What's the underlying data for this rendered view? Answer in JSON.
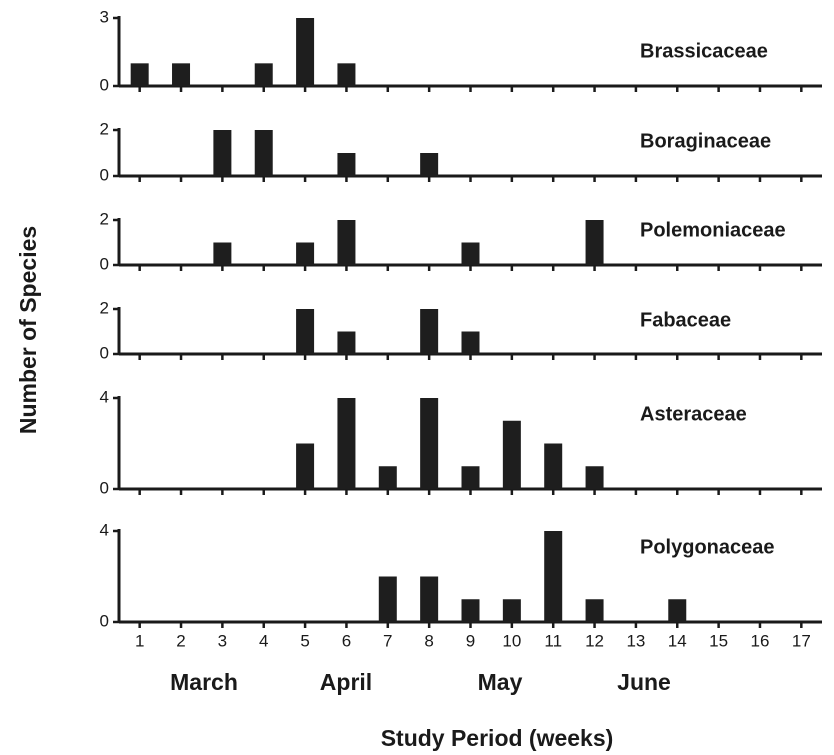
{
  "chart_data": [
    {
      "type": "bar",
      "title": "Brassicaceae",
      "x": [
        1,
        2,
        4,
        5,
        6
      ],
      "values": [
        1,
        1,
        1,
        3,
        1
      ],
      "color": "#1e1e1e",
      "xlim": [
        0.5,
        17.5
      ],
      "xticks": [
        1,
        2,
        3,
        4,
        5,
        6,
        7,
        8,
        9,
        10,
        11,
        12,
        13,
        14,
        15,
        16,
        17
      ],
      "ylim": [
        0,
        3
      ],
      "yticks": [
        0,
        3
      ]
    },
    {
      "type": "bar",
      "title": "Boraginaceae",
      "x": [
        3,
        4,
        6,
        8
      ],
      "values": [
        2,
        2,
        1,
        1
      ],
      "color": "#1e1e1e",
      "xlim": [
        0.5,
        17.5
      ],
      "xticks": [
        1,
        2,
        3,
        4,
        5,
        6,
        7,
        8,
        9,
        10,
        11,
        12,
        13,
        14,
        15,
        16,
        17
      ],
      "ylim": [
        0,
        2
      ],
      "yticks": [
        0,
        2
      ]
    },
    {
      "type": "bar",
      "title": "Polemoniaceae",
      "x": [
        3,
        5,
        6,
        9,
        12
      ],
      "values": [
        1,
        1,
        2,
        1,
        2
      ],
      "color": "#1e1e1e",
      "xlim": [
        0.5,
        17.5
      ],
      "xticks": [
        1,
        2,
        3,
        4,
        5,
        6,
        7,
        8,
        9,
        10,
        11,
        12,
        13,
        14,
        15,
        16,
        17
      ],
      "ylim": [
        0,
        2
      ],
      "yticks": [
        0,
        2
      ]
    },
    {
      "type": "bar",
      "title": "Fabaceae",
      "x": [
        5,
        6,
        8,
        9
      ],
      "values": [
        2,
        1,
        2,
        1
      ],
      "color": "#1e1e1e",
      "xlim": [
        0.5,
        17.5
      ],
      "xticks": [
        1,
        2,
        3,
        4,
        5,
        6,
        7,
        8,
        9,
        10,
        11,
        12,
        13,
        14,
        15,
        16,
        17
      ],
      "ylim": [
        0,
        2
      ],
      "yticks": [
        0,
        2
      ]
    },
    {
      "type": "bar",
      "title": "Asteraceae",
      "x": [
        5,
        6,
        7,
        8,
        9,
        10,
        11,
        12
      ],
      "values": [
        2,
        4,
        1,
        4,
        1,
        3,
        2,
        1
      ],
      "color": "#1e1e1e",
      "xlim": [
        0.5,
        17.5
      ],
      "xticks": [
        1,
        2,
        3,
        4,
        5,
        6,
        7,
        8,
        9,
        10,
        11,
        12,
        13,
        14,
        15,
        16,
        17
      ],
      "ylim": [
        0,
        4
      ],
      "yticks": [
        0,
        4
      ]
    },
    {
      "type": "bar",
      "title": "Polygonaceae",
      "x": [
        7,
        8,
        9,
        10,
        11,
        12,
        14
      ],
      "values": [
        2,
        2,
        1,
        1,
        4,
        1,
        1
      ],
      "color": "#1e1e1e",
      "xlim": [
        0.5,
        17.5
      ],
      "xticks": [
        1,
        2,
        3,
        4,
        5,
        6,
        7,
        8,
        9,
        10,
        11,
        12,
        13,
        14,
        15,
        16,
        17
      ],
      "ylim": [
        0,
        4
      ],
      "yticks": [
        0,
        4
      ]
    }
  ],
  "months": [
    "March",
    "April",
    "May",
    "June"
  ],
  "xlabel": "Study Period (weeks)",
  "ylabel": "Number of Species"
}
